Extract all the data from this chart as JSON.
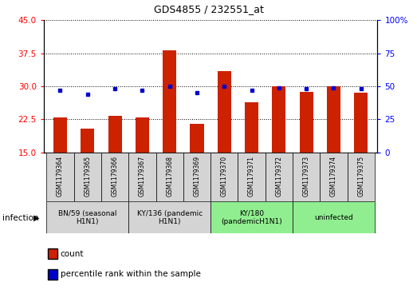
{
  "title": "GDS4855 / 232551_at",
  "samples": [
    "GSM1179364",
    "GSM1179365",
    "GSM1179366",
    "GSM1179367",
    "GSM1179368",
    "GSM1179369",
    "GSM1179370",
    "GSM1179371",
    "GSM1179372",
    "GSM1179373",
    "GSM1179374",
    "GSM1179375"
  ],
  "counts": [
    23.0,
    20.3,
    23.2,
    23.0,
    38.2,
    21.4,
    33.5,
    26.4,
    30.0,
    28.7,
    30.0,
    28.5
  ],
  "percentile_ranks": [
    47,
    44,
    48,
    47,
    50,
    45,
    50,
    47,
    49,
    48,
    49,
    48
  ],
  "ylim_left": [
    15,
    45
  ],
  "ylim_right": [
    0,
    100
  ],
  "yticks_left": [
    15,
    22.5,
    30,
    37.5,
    45
  ],
  "yticks_right": [
    0,
    25,
    50,
    75,
    100
  ],
  "bar_color": "#cc2200",
  "dot_color": "#0000cc",
  "bar_width": 0.5,
  "groups": [
    {
      "label": "BN/59 (seasonal\nH1N1)",
      "start": 0,
      "end": 3,
      "color": "#d4d4d4"
    },
    {
      "label": "KY/136 (pandemic\nH1N1)",
      "start": 3,
      "end": 6,
      "color": "#d4d4d4"
    },
    {
      "label": "KY/180\n(pandemicH1N1)",
      "start": 6,
      "end": 9,
      "color": "#90ee90"
    },
    {
      "label": "uninfected",
      "start": 9,
      "end": 12,
      "color": "#90ee90"
    }
  ],
  "infection_label": "infection",
  "legend_items": [
    {
      "label": "count",
      "color": "#cc2200"
    },
    {
      "label": "percentile rank within the sample",
      "color": "#0000cc"
    }
  ]
}
